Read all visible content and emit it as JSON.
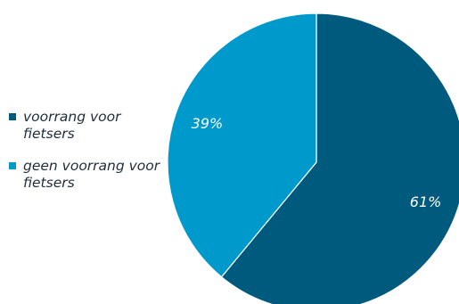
{
  "chart_data": {
    "type": "pie",
    "categories": [
      "voorrang voor fietsers",
      "geen voorrang voor fietsers"
    ],
    "values": [
      61,
      39
    ],
    "data_labels": [
      "61%",
      "39%"
    ],
    "colors": [
      "#005a7d",
      "#0099cc"
    ],
    "start_angle": "12 o'clock",
    "direction": "clockwise",
    "legend_position": "left"
  }
}
